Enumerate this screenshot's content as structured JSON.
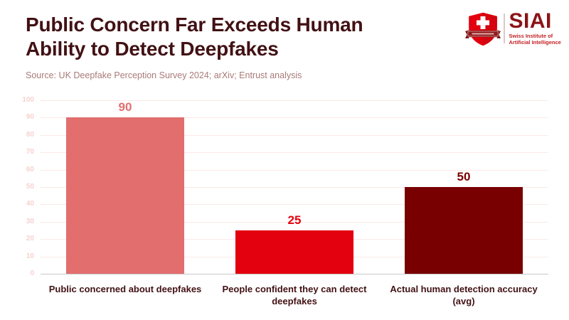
{
  "header": {
    "title_line1": "Public Concern Far Exceeds Human",
    "title_line2": "Ability to Detect Deepfakes",
    "source": "Source: UK Deepfake Perception Survey 2024; arXiv; Entrust analysis"
  },
  "logo": {
    "acronym": "SIAI",
    "tagline_line1": "Swiss Institute of",
    "tagline_line2": "Artificial Intelligence",
    "colors": {
      "shield_red": "#e3000f",
      "ribbon_dark_red": "#8b1a1a",
      "cross_white": "#ffffff",
      "acronym_maroon": "#8a1417",
      "tagline_red": "#c22126"
    }
  },
  "chart_data": {
    "type": "bar",
    "title": "Public Concern Far Exceeds Human Ability to Detect Deepfakes",
    "subtitle_source": "Source: UK Deepfake Perception Survey 2024; arXiv; Entrust analysis",
    "categories": [
      "Public concerned about deepfakes",
      "People confident they can detect deepfakes",
      "Actual human detection accuracy (avg)"
    ],
    "values": [
      90,
      25,
      50
    ],
    "bar_colors": [
      "#e26e6e",
      "#e3000f",
      "#790000"
    ],
    "value_label_colors": [
      "#e26e6e",
      "#e3000f",
      "#790000"
    ],
    "xlabel": "",
    "ylabel": "",
    "ylim": [
      0,
      100
    ],
    "yticks": [
      0,
      10,
      20,
      30,
      40,
      50,
      60,
      70,
      80,
      90,
      100
    ],
    "grid": true,
    "legend": false,
    "styles": {
      "gridline_color": "#fbe9e6",
      "ytick_color": "#f6d2ce",
      "axis_line_color": "#c9c9c9",
      "category_label_color": "#421114",
      "title_color": "#421114",
      "source_color": "#a97a78"
    }
  }
}
